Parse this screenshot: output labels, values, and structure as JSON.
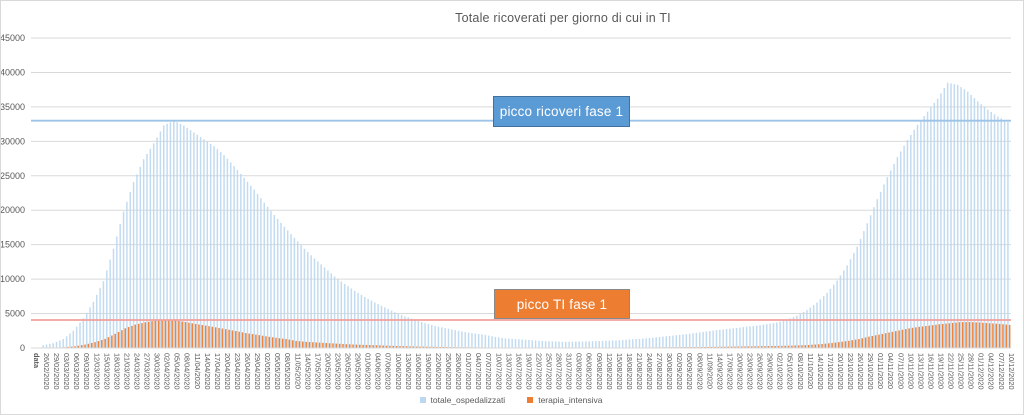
{
  "chart_data": {
    "type": "bar",
    "title": "Totale ricoverati per giorno di cui in TI",
    "xlabel": "data",
    "ylabel": "",
    "ylim": [
      0,
      45000
    ],
    "y_ticks": [
      0,
      5000,
      10000,
      15000,
      20000,
      25000,
      30000,
      35000,
      40000,
      45000
    ],
    "grid": true,
    "legend_position": "bottom",
    "x_axis_header": "data",
    "x_tick_dates": [
      "26/02/2020",
      "29/02/2020",
      "03/03/2020",
      "06/03/2020",
      "09/03/2020",
      "12/03/2020",
      "15/03/2020",
      "18/03/2020",
      "21/03/2020",
      "24/03/2020",
      "27/03/2020",
      "30/03/2020",
      "02/04/2020",
      "05/04/2020",
      "08/04/2020",
      "11/04/2020",
      "14/04/2020",
      "17/04/2020",
      "20/04/2020",
      "23/04/2020",
      "26/04/2020",
      "29/04/2020",
      "02/05/2020",
      "05/05/2020",
      "08/05/2020",
      "11/05/2020",
      "14/05/2020",
      "17/05/2020",
      "20/05/2020",
      "23/05/2020",
      "26/05/2020",
      "29/05/2020",
      "01/06/2020",
      "04/06/2020",
      "07/06/2020",
      "10/06/2020",
      "13/06/2020",
      "16/06/2020",
      "19/06/2020",
      "22/06/2020",
      "25/06/2020",
      "28/06/2020",
      "01/07/2020",
      "04/07/2020",
      "07/07/2020",
      "10/07/2020",
      "13/07/2020",
      "16/07/2020",
      "19/07/2020",
      "22/07/2020",
      "25/07/2020",
      "28/07/2020",
      "31/07/2020",
      "03/08/2020",
      "06/08/2020",
      "09/08/2020",
      "12/08/2020",
      "15/08/2020",
      "18/08/2020",
      "21/08/2020",
      "24/08/2020",
      "27/08/2020",
      "30/08/2020",
      "02/09/2020",
      "05/09/2020",
      "08/09/2020",
      "11/09/2020",
      "14/09/2020",
      "17/09/2020",
      "20/09/2020",
      "23/09/2020",
      "26/09/2020",
      "29/09/2020",
      "02/10/2020",
      "05/10/2020",
      "08/10/2020",
      "11/10/2020",
      "14/10/2020",
      "17/10/2020",
      "20/10/2020",
      "23/10/2020",
      "26/10/2020",
      "29/10/2020",
      "01/11/2020",
      "04/11/2020",
      "07/11/2020",
      "10/11/2020",
      "13/11/2020",
      "16/11/2020",
      "19/11/2020",
      "22/11/2020",
      "25/11/2020",
      "28/11/2020",
      "01/12/2020",
      "04/12/2020",
      "07/12/2020",
      "10/12/2020"
    ],
    "series": [
      {
        "name": "totale_ospedalizzati",
        "color": "#BDD7EE",
        "values": [
          400,
          700,
          1300,
          2500,
          4300,
          6700,
          9700,
          14400,
          19800,
          24100,
          27400,
          29700,
          32300,
          33000,
          32300,
          31300,
          30300,
          29300,
          28000,
          26400,
          24700,
          23000,
          21100,
          19300,
          17600,
          16000,
          14400,
          13000,
          11700,
          10400,
          9300,
          8300,
          7400,
          6600,
          5900,
          5200,
          4600,
          4100,
          3600,
          3200,
          2900,
          2600,
          2300,
          2100,
          1900,
          1600,
          1400,
          1300,
          1200,
          1100,
          1000,
          950,
          900,
          930,
          960,
          1000,
          1050,
          1100,
          1200,
          1300,
          1400,
          1550,
          1700,
          1850,
          2000,
          2200,
          2400,
          2600,
          2750,
          2900,
          3100,
          3250,
          3450,
          3700,
          4100,
          4700,
          5500,
          6600,
          8000,
          9800,
          12000,
          14700,
          18100,
          21600,
          24800,
          27700,
          30200,
          32400,
          34300,
          36200,
          38500,
          38200,
          37200,
          35800,
          34600,
          33600,
          32800
        ]
      },
      {
        "name": "terapia_intensiva",
        "color": "#ED7D31",
        "values": [
          35,
          60,
          110,
          250,
          500,
          850,
          1330,
          2060,
          2860,
          3400,
          3730,
          3980,
          4060,
          3990,
          3770,
          3500,
          3260,
          3000,
          2730,
          2470,
          2170,
          1950,
          1700,
          1480,
          1310,
          1030,
          900,
          810,
          720,
          640,
          550,
          490,
          440,
          400,
          340,
          290,
          250,
          210,
          180,
          160,
          140,
          110,
          100,
          90,
          80,
          70,
          65,
          60,
          55,
          50,
          45,
          42,
          40,
          42,
          45,
          50,
          55,
          60,
          65,
          70,
          80,
          90,
          105,
          115,
          125,
          135,
          150,
          170,
          190,
          215,
          235,
          255,
          280,
          300,
          330,
          380,
          440,
          540,
          680,
          850,
          1050,
          1300,
          1650,
          1950,
          2250,
          2550,
          2850,
          3080,
          3250,
          3450,
          3600,
          3750,
          3770,
          3700,
          3600,
          3500,
          3350
        ]
      }
    ],
    "reference_lines": [
      {
        "label": "picco ricoveri fase 1",
        "value": 33000,
        "color": "#9DC3E6",
        "box_fill": "#5B9BD5",
        "box_border": "#41719C"
      },
      {
        "label": "picco TI fase 1",
        "value": 4068,
        "color": "#F2A09C",
        "box_fill": "#ED7D31",
        "box_border": "#898989"
      }
    ],
    "note": "bars are daily; series values sampled at the 3-day x tick dates"
  },
  "colors": {
    "grid": "#D9D9D9",
    "axis_text": "#595959",
    "title_text": "#595959",
    "background": "#FFFFFF"
  }
}
